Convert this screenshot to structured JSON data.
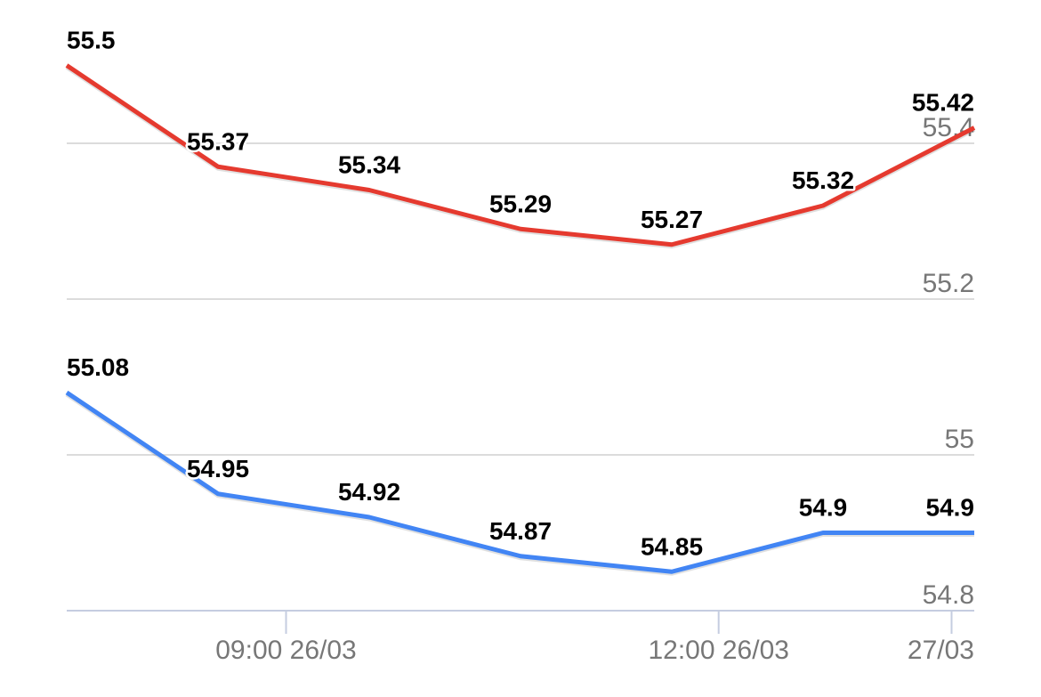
{
  "chart_data": {
    "type": "line",
    "categories": [
      null,
      null,
      null,
      null,
      null,
      null,
      null
    ],
    "series": [
      {
        "name": null,
        "color": "#e53a2f",
        "values": [
          55.5,
          55.37,
          55.34,
          55.29,
          55.27,
          55.32,
          55.42
        ]
      },
      {
        "name": null,
        "color": "#4285f4",
        "values": [
          55.08,
          54.95,
          54.92,
          54.87,
          54.85,
          54.9,
          54.9
        ]
      }
    ],
    "ylim": [
      54.8,
      55.58
    ],
    "yticks": [
      54.8,
      55,
      55.2,
      55.4
    ],
    "xticks": [
      {
        "value": 1.45,
        "label": "09:00 26/03"
      },
      {
        "value": 4.31,
        "label": "12:00 26/03"
      },
      {
        "value": 5.85,
        "label": "27/03"
      }
    ],
    "grid": true
  }
}
